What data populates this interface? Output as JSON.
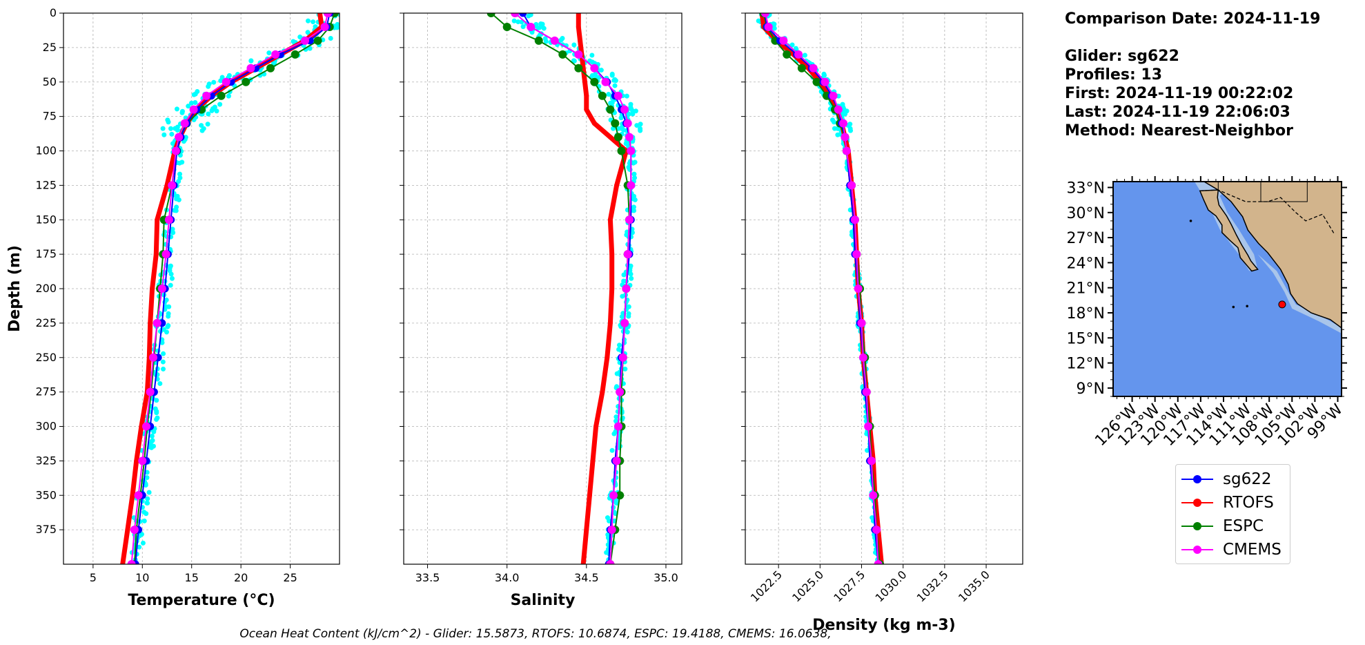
{
  "info": {
    "comparison_date": "Comparison Date: 2024-11-19",
    "glider": "Glider: sg622",
    "profiles": "Profiles: 13",
    "first": "First: 2024-11-19 00:22:02",
    "last": "Last: 2024-11-19 22:06:03",
    "method": "Method: Nearest-Neighbor"
  },
  "footer": "Ocean Heat Content (kJ/cm^2) - Glider: 15.5873,  RTOFS: 10.6874,  ESPC: 19.4188,  CMEMS: 16.0638,",
  "colors": {
    "glider": "#0000ff",
    "glider_raw": "#00ffff",
    "rtofs": "#ff0000",
    "espc": "#008000",
    "cmems": "#ff00ff",
    "ocean": "#6495ed",
    "shelf": "#a9c5ea",
    "land": "#d2b48c"
  },
  "legend": [
    {
      "name": "sg622",
      "color": "#0000ff"
    },
    {
      "name": "RTOFS",
      "color": "#ff0000"
    },
    {
      "name": "ESPC",
      "color": "#008000"
    },
    {
      "name": "CMEMS",
      "color": "#ff00ff"
    }
  ],
  "chart_data": [
    {
      "type": "line",
      "xlabel": "Temperature (°C)",
      "ylabel": "Depth (m)",
      "xlim": [
        2,
        30
      ],
      "ylim": [
        400,
        0
      ],
      "y_inverted": true,
      "grid": true,
      "xticks": [
        5,
        10,
        15,
        20,
        25
      ],
      "yticks": [
        0,
        25,
        50,
        75,
        100,
        125,
        150,
        175,
        200,
        225,
        250,
        275,
        300,
        325,
        350,
        375
      ],
      "depth": [
        0,
        10,
        20,
        30,
        40,
        50,
        60,
        70,
        80,
        90,
        100,
        125,
        150,
        175,
        200,
        225,
        250,
        275,
        300,
        325,
        350,
        375,
        400
      ],
      "series": [
        {
          "name": "sg622",
          "values": [
            29.0,
            28.7,
            27.0,
            24.0,
            21.5,
            19.0,
            17.0,
            15.5,
            14.5,
            13.9,
            13.5,
            13.2,
            12.9,
            12.6,
            12.3,
            12.0,
            11.6,
            11.2,
            10.8,
            10.4,
            10.0,
            9.6,
            9.3
          ]
        },
        {
          "name": "RTOFS",
          "values": [
            28.0,
            28.2,
            26.5,
            24.0,
            21.5,
            19.0,
            17.0,
            15.5,
            14.5,
            13.8,
            13.3,
            12.5,
            11.5,
            11.4,
            11.0,
            10.8,
            10.7,
            10.5,
            9.9,
            9.4,
            9.0,
            8.5,
            8.0
          ]
        },
        {
          "name": "ESPC",
          "values": [
            29.5,
            29.0,
            27.8,
            25.5,
            23.0,
            20.5,
            18.0,
            16.0,
            14.5,
            13.8,
            13.5,
            13.0,
            12.2,
            12.1,
            11.8,
            11.5,
            11.2,
            10.9,
            10.5,
            10.2,
            9.8,
            9.4,
            9.2
          ]
        },
        {
          "name": "CMEMS",
          "values": [
            28.8,
            28.5,
            26.5,
            23.5,
            21.0,
            18.5,
            16.5,
            15.2,
            14.3,
            13.7,
            13.4,
            13.0,
            12.7,
            12.4,
            12.0,
            11.5,
            11.1,
            10.8,
            10.4,
            10.0,
            9.6,
            9.2,
            8.9
          ]
        }
      ]
    },
    {
      "type": "line",
      "xlabel": "Salinity",
      "ylabel": "",
      "xlim": [
        33.35,
        35.1
      ],
      "ylim": [
        400,
        0
      ],
      "y_inverted": true,
      "grid": true,
      "xticks": [
        33.5,
        34.0,
        34.5,
        35.0
      ],
      "depth": [
        0,
        10,
        20,
        30,
        40,
        50,
        60,
        70,
        80,
        90,
        100,
        125,
        150,
        175,
        200,
        225,
        250,
        275,
        300,
        325,
        350,
        375,
        400
      ],
      "series": [
        {
          "name": "sg622",
          "values": [
            34.1,
            34.15,
            34.3,
            34.45,
            34.55,
            34.63,
            34.68,
            34.72,
            34.75,
            34.77,
            34.78,
            34.78,
            34.78,
            34.77,
            34.75,
            34.74,
            34.72,
            34.71,
            34.7,
            34.68,
            34.67,
            34.65,
            34.64
          ]
        },
        {
          "name": "RTOFS",
          "values": [
            34.45,
            34.45,
            34.46,
            34.47,
            34.48,
            34.49,
            34.5,
            34.5,
            34.55,
            34.65,
            34.75,
            34.69,
            34.65,
            34.66,
            34.66,
            34.65,
            34.63,
            34.6,
            34.56,
            34.54,
            34.52,
            34.5,
            34.48
          ]
        },
        {
          "name": "ESPC",
          "values": [
            33.9,
            34.0,
            34.2,
            34.35,
            34.45,
            34.55,
            34.6,
            34.65,
            34.68,
            34.7,
            34.72,
            34.76,
            34.77,
            34.76,
            34.75,
            34.74,
            34.73,
            34.72,
            34.72,
            34.71,
            34.71,
            34.68,
            34.65
          ]
        },
        {
          "name": "CMEMS",
          "values": [
            34.05,
            34.15,
            34.3,
            34.45,
            34.55,
            34.62,
            34.7,
            34.74,
            34.76,
            34.77,
            34.78,
            34.78,
            34.77,
            34.76,
            34.75,
            34.74,
            34.73,
            34.71,
            34.7,
            34.69,
            34.67,
            34.66,
            34.65
          ]
        }
      ]
    },
    {
      "type": "line",
      "xlabel": "Density (kg m-3)",
      "ylabel": "",
      "xlim": [
        1020.5,
        1037.2
      ],
      "ylim": [
        400,
        0
      ],
      "y_inverted": true,
      "grid": true,
      "xticks": [
        1022.5,
        1025.0,
        1027.5,
        1030.0,
        1032.5,
        1035.0
      ],
      "xtick_labels": [
        "1022.5",
        "1025.0",
        "1027.5",
        "1030.0",
        "1032.5",
        "1035.0"
      ],
      "depth": [
        0,
        10,
        20,
        30,
        40,
        50,
        60,
        70,
        80,
        90,
        100,
        125,
        150,
        175,
        200,
        225,
        250,
        275,
        300,
        325,
        350,
        375,
        400
      ],
      "series": [
        {
          "name": "sg622",
          "values": [
            1021.7,
            1021.8,
            1022.6,
            1023.6,
            1024.5,
            1025.2,
            1025.7,
            1026.1,
            1026.3,
            1026.5,
            1026.6,
            1026.8,
            1027.0,
            1027.1,
            1027.3,
            1027.4,
            1027.6,
            1027.7,
            1027.9,
            1028.0,
            1028.2,
            1028.3,
            1028.5
          ]
        },
        {
          "name": "RTOFS",
          "values": [
            1021.5,
            1021.6,
            1022.4,
            1023.4,
            1024.3,
            1025.0,
            1025.6,
            1026.0,
            1026.3,
            1026.5,
            1026.7,
            1026.9,
            1027.1,
            1027.2,
            1027.3,
            1027.5,
            1027.6,
            1027.8,
            1028.0,
            1028.2,
            1028.3,
            1028.5,
            1028.7
          ]
        },
        {
          "name": "ESPC",
          "values": [
            1021.6,
            1021.8,
            1022.3,
            1023.0,
            1023.9,
            1024.8,
            1025.4,
            1025.9,
            1026.2,
            1026.5,
            1026.6,
            1026.9,
            1027.1,
            1027.2,
            1027.4,
            1027.5,
            1027.7,
            1027.8,
            1028.0,
            1028.1,
            1028.3,
            1028.4,
            1028.6
          ]
        },
        {
          "name": "CMEMS",
          "values": [
            1021.7,
            1021.9,
            1022.8,
            1023.7,
            1024.6,
            1025.3,
            1025.8,
            1026.1,
            1026.4,
            1026.5,
            1026.6,
            1026.9,
            1027.1,
            1027.2,
            1027.3,
            1027.5,
            1027.6,
            1027.8,
            1027.9,
            1028.1,
            1028.2,
            1028.4,
            1028.5
          ]
        }
      ]
    },
    {
      "type": "map",
      "lat_range": [
        8,
        33.7
      ],
      "lon_range": [
        -128.5,
        -98.5
      ],
      "lat_ticks": [
        "33°N",
        "30°N",
        "27°N",
        "24°N",
        "21°N",
        "18°N",
        "15°N",
        "12°N",
        "9°N"
      ],
      "lon_ticks": [
        "126°W",
        "123°W",
        "120°W",
        "117°W",
        "114°W",
        "111°W",
        "108°W",
        "105°W",
        "102°W",
        "99°W"
      ],
      "glider_location": [
        -106.3,
        19.0
      ]
    }
  ]
}
